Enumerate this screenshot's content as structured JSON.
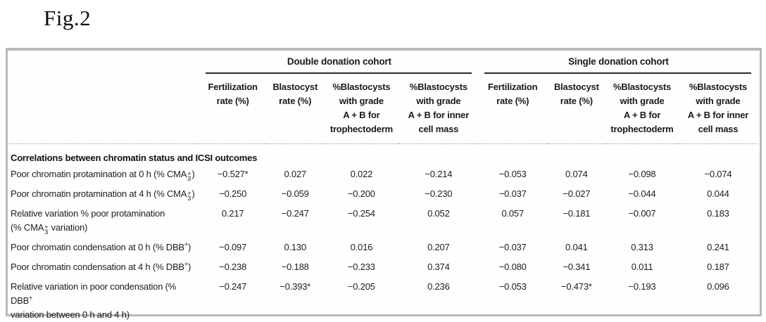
{
  "figure_label": "Fig.2",
  "colors": {
    "frame_border": "#b9b9b9",
    "rule_dark": "#2a2a2a",
    "dotted_divider": "#9a9a9a",
    "text": "#1d1d1d",
    "background": "#ffffff"
  },
  "table": {
    "groups": [
      {
        "label": "Double donation cohort"
      },
      {
        "label": "Single donation cohort"
      }
    ],
    "columns": [
      "Fertilization\nrate (%)",
      "Blastocyst\nrate (%)",
      "%Blastocysts\nwith grade\nA + B for\ntrophectoderm",
      "%Blastocysts\nwith grade\nA + B for inner\ncell mass",
      "Fertilization\nrate (%)",
      "Blastocyst\nrate (%)",
      "%Blastocysts\nwith grade\nA + B for\ntrophectoderm",
      "%Blastocysts\nwith grade\nA + B for inner\ncell mass"
    ],
    "section_header": "Correlations between chromatin status and ICSI outcomes",
    "rows": [
      {
        "label": [
          {
            "t": "Poor chromatin protamination at 0 h (% CMA"
          },
          {
            "stack": {
              "sup": "+",
              "sub": "3"
            }
          },
          {
            "t": ")"
          }
        ],
        "values": [
          "−0.527*",
          "0.027",
          "0.022",
          "−0.214",
          "−0.053",
          "0.074",
          "−0.098",
          "−0.074"
        ]
      },
      {
        "label": [
          {
            "t": "Poor chromatin protamination at 4 h (% CMA"
          },
          {
            "stack": {
              "sup": "+",
              "sub": "3"
            }
          },
          {
            "t": ")"
          }
        ],
        "values": [
          "−0.250",
          "−0.059",
          "−0.200",
          "−0.230",
          "−0.037",
          "−0.027",
          "−0.044",
          "0.044"
        ]
      },
      {
        "label": [
          {
            "t": "Relative variation % poor protamination"
          },
          {
            "br": true
          },
          {
            "t": "(% CMA"
          },
          {
            "stack": {
              "sup": "+",
              "sub": "3"
            }
          },
          {
            "t": " variation)"
          }
        ],
        "values": [
          "0.217",
          "−0.247",
          "−0.254",
          "0.052",
          "0.057",
          "−0.181",
          "−0.007",
          "0.183"
        ]
      },
      {
        "label": [
          {
            "t": "Poor chromatin condensation at 0 h (% DBB"
          },
          {
            "sup": "+"
          },
          {
            "t": ")"
          }
        ],
        "values": [
          "−0.097",
          "0.130",
          "0.016",
          "0.207",
          "−0.037",
          "0.041",
          "0.313",
          "0.241"
        ]
      },
      {
        "label": [
          {
            "t": "Poor chromatin condensation at 4 h (% DBB"
          },
          {
            "sup": "+"
          },
          {
            "t": ")"
          }
        ],
        "values": [
          "−0.238",
          "−0.188",
          "−0.233",
          "0.374",
          "−0.080",
          "−0.341",
          "0.011",
          "0.187"
        ]
      },
      {
        "label": [
          {
            "t": "Relative variation in poor condensation (% DBB"
          },
          {
            "sup": "+"
          },
          {
            "br": true
          },
          {
            "t": "variation between 0 h and 4 h)"
          }
        ],
        "values": [
          "−0.247",
          "−0.393*",
          "−0.205",
          "0.236",
          "−0.053",
          "−0.473*",
          "−0.193",
          "0.096"
        ]
      }
    ]
  }
}
